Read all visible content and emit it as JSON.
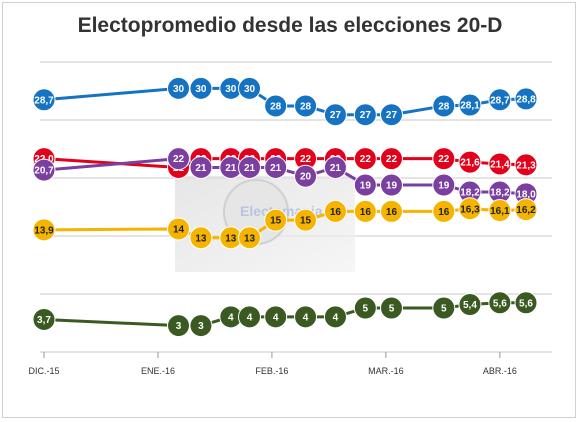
{
  "chart_data": {
    "type": "line",
    "title": "Electopromedio desde las elecciones 20-D",
    "xlabel": "",
    "ylabel": "",
    "x_ticks": [
      "DIC.-15",
      "ENE.-16",
      "FEB.-16",
      "MAR.-16",
      "ABR.-16"
    ],
    "watermark": "Electomania",
    "grid": true,
    "legend": "none",
    "series": [
      {
        "color": "#1673C2",
        "points": [
          {
            "x": 0,
            "y": 28.7,
            "label": "28,7"
          },
          {
            "x": 36,
            "y": 30,
            "label": "30"
          },
          {
            "x": 42,
            "y": 30,
            "label": "30"
          },
          {
            "x": 50,
            "y": 30,
            "label": "30"
          },
          {
            "x": 55,
            "y": 30,
            "label": "30"
          },
          {
            "x": 62,
            "y": 28,
            "label": "28"
          },
          {
            "x": 70,
            "y": 28,
            "label": "28"
          },
          {
            "x": 78,
            "y": 27,
            "label": "27"
          },
          {
            "x": 86,
            "y": 27,
            "label": "27"
          },
          {
            "x": 93,
            "y": 27,
            "label": "27"
          },
          {
            "x": 107,
            "y": 28,
            "label": "28"
          },
          {
            "x": 114,
            "y": 28.1,
            "label": "28,1"
          },
          {
            "x": 122,
            "y": 28.7,
            "label": "28,7"
          },
          {
            "x": 129,
            "y": 28.8,
            "label": "28,8"
          }
        ]
      },
      {
        "color": "#E3001B",
        "points": [
          {
            "x": 0,
            "y": 22.0,
            "label": "22,0"
          },
          {
            "x": 36,
            "y": 21,
            "label": "21"
          },
          {
            "x": 42,
            "y": 22,
            "label": "22"
          },
          {
            "x": 50,
            "y": 22,
            "label": "22"
          },
          {
            "x": 55,
            "y": 22,
            "label": "22"
          },
          {
            "x": 62,
            "y": 22,
            "label": "22"
          },
          {
            "x": 70,
            "y": 22,
            "label": "22"
          },
          {
            "x": 78,
            "y": 22,
            "label": "22"
          },
          {
            "x": 86,
            "y": 22,
            "label": "22"
          },
          {
            "x": 93,
            "y": 22,
            "label": "22"
          },
          {
            "x": 107,
            "y": 22,
            "label": "22"
          },
          {
            "x": 114,
            "y": 21.6,
            "label": "21,6"
          },
          {
            "x": 122,
            "y": 21.4,
            "label": "21,4"
          },
          {
            "x": 129,
            "y": 21.3,
            "label": "21,3"
          }
        ]
      },
      {
        "color": "#7B3FA0",
        "points": [
          {
            "x": 0,
            "y": 20.7,
            "label": "20,7"
          },
          {
            "x": 36,
            "y": 22,
            "label": "22"
          },
          {
            "x": 42,
            "y": 21,
            "label": "21"
          },
          {
            "x": 50,
            "y": 21,
            "label": "21"
          },
          {
            "x": 55,
            "y": 21,
            "label": "21"
          },
          {
            "x": 62,
            "y": 21,
            "label": "21"
          },
          {
            "x": 70,
            "y": 20,
            "label": "20"
          },
          {
            "x": 78,
            "y": 21,
            "label": "21"
          },
          {
            "x": 86,
            "y": 19,
            "label": "19"
          },
          {
            "x": 93,
            "y": 19,
            "label": "19"
          },
          {
            "x": 107,
            "y": 19,
            "label": "19"
          },
          {
            "x": 114,
            "y": 18.2,
            "label": "18,2"
          },
          {
            "x": 122,
            "y": 18.2,
            "label": "18,2"
          },
          {
            "x": 129,
            "y": 18.0,
            "label": "18,0"
          }
        ]
      },
      {
        "color": "#F5B400",
        "points": [
          {
            "x": 0,
            "y": 13.9,
            "label": "13,9"
          },
          {
            "x": 36,
            "y": 14,
            "label": "14"
          },
          {
            "x": 42,
            "y": 13,
            "label": "13"
          },
          {
            "x": 50,
            "y": 13,
            "label": "13"
          },
          {
            "x": 55,
            "y": 13,
            "label": "13"
          },
          {
            "x": 62,
            "y": 15,
            "label": "15"
          },
          {
            "x": 70,
            "y": 15,
            "label": "15"
          },
          {
            "x": 78,
            "y": 16,
            "label": "16"
          },
          {
            "x": 86,
            "y": 16,
            "label": "16"
          },
          {
            "x": 93,
            "y": 16,
            "label": "16"
          },
          {
            "x": 107,
            "y": 16,
            "label": "16"
          },
          {
            "x": 114,
            "y": 16.3,
            "label": "16,3"
          },
          {
            "x": 122,
            "y": 16.1,
            "label": "16,1"
          },
          {
            "x": 129,
            "y": 16.2,
            "label": "16,2"
          }
        ]
      },
      {
        "color": "#3A5A22",
        "points": [
          {
            "x": 0,
            "y": 3.7,
            "label": "3,7"
          },
          {
            "x": 36,
            "y": 3,
            "label": "3"
          },
          {
            "x": 42,
            "y": 3,
            "label": "3"
          },
          {
            "x": 50,
            "y": 4,
            "label": "4"
          },
          {
            "x": 55,
            "y": 4,
            "label": "4"
          },
          {
            "x": 62,
            "y": 4,
            "label": "4"
          },
          {
            "x": 70,
            "y": 4,
            "label": "4"
          },
          {
            "x": 78,
            "y": 4,
            "label": "4"
          },
          {
            "x": 86,
            "y": 5,
            "label": "5"
          },
          {
            "x": 93,
            "y": 5,
            "label": "5"
          },
          {
            "x": 107,
            "y": 5,
            "label": "5"
          },
          {
            "x": 114,
            "y": 5.4,
            "label": "5,4"
          },
          {
            "x": 122,
            "y": 5.6,
            "label": "5,6"
          },
          {
            "x": 129,
            "y": 5.6,
            "label": "5,6"
          }
        ]
      }
    ]
  }
}
